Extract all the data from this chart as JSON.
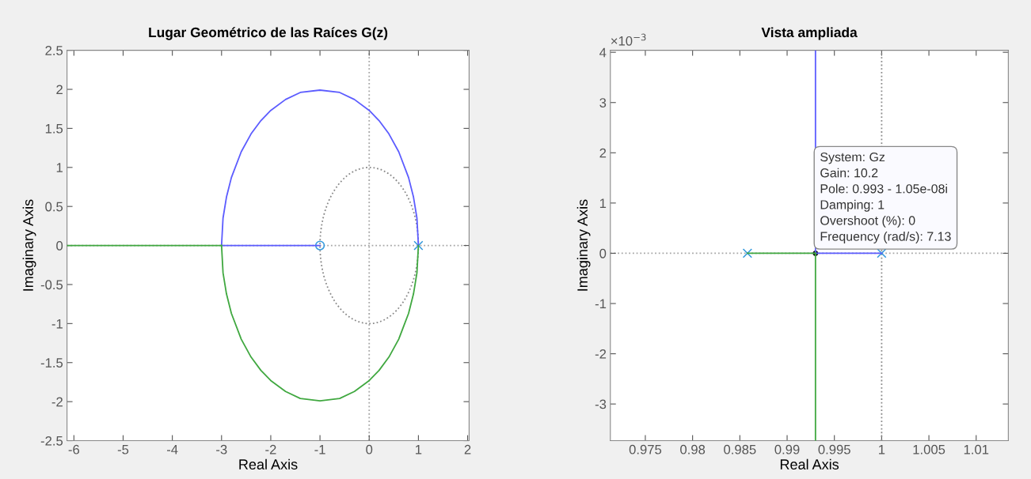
{
  "chart_data": [
    {
      "type": "line",
      "title": "Lugar Geométrico de las Raíces G(z)",
      "xlabel": "Real Axis",
      "ylabel": "Imaginary Axis",
      "xlim": [
        -6.14,
        2.03
      ],
      "ylim": [
        -2.5,
        2.5
      ],
      "xticks": [
        -6,
        -5,
        -4,
        -3,
        -2,
        -1,
        0,
        1,
        2
      ],
      "yticks": [
        -2.5,
        -2,
        -1.5,
        -1,
        -0.5,
        0,
        0.5,
        1,
        1.5,
        2,
        2.5
      ],
      "grid": false,
      "legend": false,
      "ref_lines": [
        {
          "axis": "x",
          "value": 0,
          "color": "#a6a6a6",
          "line_style": "dotted"
        },
        {
          "axis": "y",
          "value": 0,
          "color": "#a6a6a6",
          "line_style": "dotted"
        }
      ],
      "series": [
        {
          "type": "line",
          "color": "#5c5cff",
          "x": [
            1,
            0.97,
            0.9,
            0.8,
            0.6,
            0.4,
            0.2,
            0,
            -0.3,
            -0.6,
            -1,
            -1.4,
            -1.7,
            -2,
            -2.2,
            -2.4,
            -2.6,
            -2.8,
            -2.9,
            -2.97,
            -3
          ],
          "values": [
            0,
            0.35,
            0.62,
            0.87,
            1.2,
            1.43,
            1.6,
            1.73,
            1.87,
            1.96,
            1.99,
            1.96,
            1.87,
            1.73,
            1.6,
            1.43,
            1.2,
            0.87,
            0.62,
            0.35,
            0
          ]
        },
        {
          "type": "line",
          "color": "#5c5cff",
          "x": [
            -3,
            -1
          ],
          "values": [
            0,
            0
          ]
        },
        {
          "type": "line",
          "color": "#40a840",
          "x": [
            1,
            0.97,
            0.9,
            0.8,
            0.6,
            0.4,
            0.2,
            0,
            -0.3,
            -0.6,
            -1,
            -1.4,
            -1.7,
            -2,
            -2.2,
            -2.4,
            -2.6,
            -2.8,
            -2.9,
            -2.97,
            -3
          ],
          "values": [
            0,
            -0.35,
            -0.62,
            -0.87,
            -1.2,
            -1.43,
            -1.6,
            -1.73,
            -1.87,
            -1.96,
            -1.99,
            -1.96,
            -1.87,
            -1.73,
            -1.6,
            -1.43,
            -1.2,
            -0.87,
            -0.62,
            -0.35,
            0
          ]
        },
        {
          "type": "line",
          "color": "#40a840",
          "x": [
            -3,
            -6.14
          ],
          "values": [
            0,
            0
          ]
        },
        {
          "type": "scatter",
          "marker": "circle",
          "color": "#3399dd",
          "x": [
            -1
          ],
          "values": [
            0
          ]
        },
        {
          "type": "scatter",
          "marker": "cross",
          "color": "#3399dd",
          "x": [
            1
          ],
          "values": [
            0
          ]
        }
      ]
    },
    {
      "type": "line",
      "title": "Vista ampliada",
      "xlabel": "Real Axis",
      "ylabel": "Imaginary Axis",
      "xlim": [
        0.9713,
        1.0134
      ],
      "ylim": [
        -3.73,
        4.04
      ],
      "xticks": [
        0.975,
        0.98,
        0.985,
        0.99,
        0.995,
        1,
        1.005,
        1.01
      ],
      "yticks": [
        -3,
        -2,
        -1,
        0,
        1,
        2,
        3,
        4
      ],
      "grid": false,
      "legend": false,
      "ref_lines": [
        {
          "axis": "y",
          "value": 0,
          "color": "#a6a6a6",
          "line_style": "dotted"
        }
      ],
      "annotations": [
        "×10$^{−3}$",
        {
          "text": "System: Gz\nGain: 10.2\nPole: 0.993 - 1.05e-08i\nDamping: 1\nOvershoot (%): 0\nFrequency (rad/s): 7.13",
          "x": 0.993,
          "y": 0
        }
      ],
      "series": [
        {
          "type": "line",
          "line_style": "dotted",
          "color": "#8a8a8a",
          "x": [
            1,
            1
          ],
          "values": [
            -3.73,
            4.04
          ]
        },
        {
          "type": "line",
          "color": "#5c5cff",
          "x": [
            0.993,
            0.993
          ],
          "values": [
            0,
            4.04
          ]
        },
        {
          "type": "line",
          "color": "#5c5cff",
          "x": [
            0.993,
            1
          ],
          "values": [
            0,
            0
          ]
        },
        {
          "type": "line",
          "color": "#40a840",
          "x": [
            0.9858,
            0.993
          ],
          "values": [
            0,
            0
          ]
        },
        {
          "type": "line",
          "color": "#40a840",
          "x": [
            0.993,
            0.993
          ],
          "values": [
            0,
            -3.73
          ]
        },
        {
          "type": "scatter",
          "marker": "cross",
          "color": "#3399dd",
          "x": [
            0.9858,
            1
          ],
          "values": [
            0,
            0
          ]
        },
        {
          "type": "scatter",
          "marker": "circle",
          "color": "#111111",
          "x": [
            0.993
          ],
          "values": [
            0
          ]
        }
      ]
    }
  ]
}
